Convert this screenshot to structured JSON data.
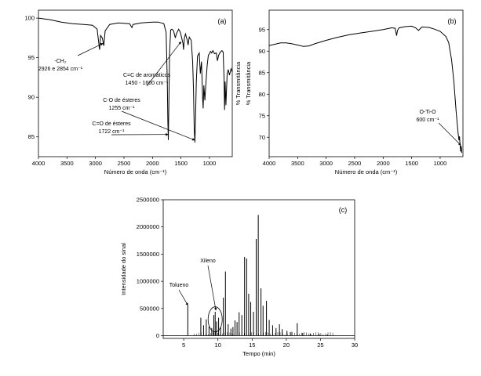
{
  "chart_data": [
    {
      "id": "a",
      "type": "line",
      "panel_label": "(a)",
      "xlabel": "Número de onda (cm⁻¹)",
      "ylabel": "% Transmitância",
      "xlim": [
        4000,
        600
      ],
      "ylim": [
        82.5,
        101
      ],
      "xticks": [
        4000,
        3500,
        3000,
        2500,
        2000,
        1500,
        1000
      ],
      "yticks": [
        85,
        90,
        95,
        100
      ],
      "series": [
        {
          "points": [
            [
              4000,
              100
            ],
            [
              3800,
              99.8
            ],
            [
              3600,
              99.5
            ],
            [
              3400,
              99.3
            ],
            [
              3200,
              99.2
            ],
            [
              3050,
              99.1
            ],
            [
              2970,
              98.6
            ],
            [
              2935,
              96.4
            ],
            [
              2926,
              96.0
            ],
            [
              2910,
              97.8
            ],
            [
              2880,
              97.5
            ],
            [
              2854,
              96.5
            ],
            [
              2830,
              98.4
            ],
            [
              2750,
              99.2
            ],
            [
              2600,
              99.4
            ],
            [
              2400,
              99.3
            ],
            [
              2360,
              98.8
            ],
            [
              2340,
              99.2
            ],
            [
              2200,
              99.4
            ],
            [
              2000,
              99.5
            ],
            [
              1900,
              99.5
            ],
            [
              1800,
              99.3
            ],
            [
              1760,
              98.2
            ],
            [
              1740,
              92
            ],
            [
              1730,
              87
            ],
            [
              1722,
              84.6
            ],
            [
              1712,
              89
            ],
            [
              1700,
              95.5
            ],
            [
              1680,
              98.5
            ],
            [
              1660,
              98.6
            ],
            [
              1630,
              98.4
            ],
            [
              1600,
              97.5
            ],
            [
              1580,
              98.0
            ],
            [
              1540,
              98.6
            ],
            [
              1510,
              98.2
            ],
            [
              1490,
              97.6
            ],
            [
              1465,
              96.8
            ],
            [
              1455,
              96.0
            ],
            [
              1440,
              97.5
            ],
            [
              1420,
              98.0
            ],
            [
              1390,
              97.2
            ],
            [
              1375,
              96.6
            ],
            [
              1355,
              97.6
            ],
            [
              1320,
              97.2
            ],
            [
              1295,
              94.5
            ],
            [
              1280,
              91
            ],
            [
              1268,
              86
            ],
            [
              1255,
              84.3
            ],
            [
              1245,
              87
            ],
            [
              1230,
              92
            ],
            [
              1210,
              95.2
            ],
            [
              1180,
              95.6
            ],
            [
              1160,
              93
            ],
            [
              1140,
              94.5
            ],
            [
              1120,
              90
            ],
            [
              1110,
              88.6
            ],
            [
              1098,
              91.5
            ],
            [
              1080,
              89.6
            ],
            [
              1070,
              91
            ],
            [
              1040,
              94
            ],
            [
              1020,
              95.3
            ],
            [
              1000,
              95.5
            ],
            [
              980,
              95.8
            ],
            [
              960,
              95.6
            ],
            [
              940,
              95.9
            ],
            [
              910,
              95.5
            ],
            [
              880,
              95.6
            ],
            [
              860,
              94.6
            ],
            [
              840,
              95.3
            ],
            [
              810,
              95.7
            ],
            [
              780,
              95.9
            ],
            [
              760,
              95.7
            ],
            [
              745,
              92.5
            ],
            [
              735,
              88.4
            ],
            [
              725,
              92
            ],
            [
              712,
              89
            ],
            [
              700,
              91
            ],
            [
              690,
              93
            ],
            [
              670,
              93.5
            ],
            [
              650,
              92.8
            ],
            [
              620,
              93.6
            ],
            [
              600,
              93.2
            ]
          ]
        }
      ],
      "annotations": [
        {
          "lines": [
            "-CH₂",
            "2926 e 2854 cm⁻¹"
          ],
          "arrow_to": [
            2870,
            96.8
          ]
        },
        {
          "lines": [
            "C=C de aromáticos",
            "1450 - 1600 cm⁻¹"
          ],
          "arrow_to": [
            1500,
            97.0
          ]
        },
        {
          "lines": [
            "C-O de ésteres",
            "1255 cm⁻¹"
          ],
          "arrow_to": [
            1262,
            84.6
          ]
        },
        {
          "lines": [
            "C=O de ésteres",
            "1722 cm⁻¹"
          ],
          "arrow_to": [
            1728,
            85.3
          ]
        }
      ]
    },
    {
      "id": "b",
      "type": "line",
      "panel_label": "(b)",
      "xlabel": "Número de onda (cm⁻¹)",
      "ylabel": "% Transmitância",
      "xlim": [
        4000,
        600
      ],
      "ylim": [
        65.5,
        99.5
      ],
      "xticks": [
        4000,
        3500,
        3000,
        2500,
        2000,
        1500,
        1000
      ],
      "yticks": [
        70,
        75,
        80,
        85,
        90,
        95
      ],
      "series": [
        {
          "points": [
            [
              4000,
              91.3
            ],
            [
              3900,
              91.6
            ],
            [
              3800,
              91.9
            ],
            [
              3700,
              91.9
            ],
            [
              3600,
              91.7
            ],
            [
              3500,
              91.4
            ],
            [
              3400,
              91.1
            ],
            [
              3300,
              91.2
            ],
            [
              3200,
              91.7
            ],
            [
              3000,
              92.5
            ],
            [
              2800,
              93.2
            ],
            [
              2600,
              93.8
            ],
            [
              2400,
              94.2
            ],
            [
              2200,
              94.6
            ],
            [
              2000,
              95.0
            ],
            [
              1850,
              95.4
            ],
            [
              1790,
              95.3
            ],
            [
              1765,
              93.6
            ],
            [
              1748,
              94.8
            ],
            [
              1720,
              95.4
            ],
            [
              1600,
              95.7
            ],
            [
              1500,
              95.8
            ],
            [
              1430,
              95.4
            ],
            [
              1380,
              94.8
            ],
            [
              1320,
              95.6
            ],
            [
              1200,
              95.5
            ],
            [
              1100,
              95.1
            ],
            [
              1000,
              94.6
            ],
            [
              900,
              93.4
            ],
            [
              850,
              92.0
            ],
            [
              800,
              88
            ],
            [
              760,
              83
            ],
            [
              720,
              76
            ],
            [
              690,
              71.5
            ],
            [
              670,
              69.3
            ],
            [
              660,
              70.2
            ],
            [
              650,
              68.0
            ],
            [
              640,
              66.7
            ],
            [
              630,
              68.0
            ],
            [
              620,
              66.4
            ]
          ]
        }
      ],
      "annotations": [
        {
          "lines": [
            "O-Ti-O",
            "600 cm⁻¹"
          ],
          "arrow_to": [
            640,
            68.2
          ]
        }
      ]
    },
    {
      "id": "c",
      "type": "line",
      "panel_label": "(c)",
      "xlabel": "Tempo (min)",
      "ylabel": "Intensidade do sinal",
      "xlim": [
        2,
        30
      ],
      "ylim": [
        -50000,
        2500000
      ],
      "xticks": [
        5,
        10,
        15,
        20,
        25,
        30
      ],
      "yticks": [
        0,
        500000,
        1000000,
        1500000,
        2000000,
        2500000
      ],
      "peaks": [
        [
          5.6,
          560000
        ],
        [
          7.5,
          330000
        ],
        [
          7.9,
          190000
        ],
        [
          8.3,
          300000
        ],
        [
          8.7,
          170000
        ],
        [
          9.1,
          140000
        ],
        [
          9.4,
          380000
        ],
        [
          9.6,
          440000
        ],
        [
          9.8,
          260000
        ],
        [
          10.1,
          330000
        ],
        [
          10.4,
          160000
        ],
        [
          10.8,
          700000
        ],
        [
          11.1,
          1180000
        ],
        [
          11.5,
          210000
        ],
        [
          11.9,
          130000
        ],
        [
          12.2,
          160000
        ],
        [
          12.5,
          280000
        ],
        [
          12.8,
          250000
        ],
        [
          13.1,
          430000
        ],
        [
          13.5,
          380000
        ],
        [
          13.9,
          1450000
        ],
        [
          14.2,
          1420000
        ],
        [
          14.5,
          770000
        ],
        [
          14.8,
          620000
        ],
        [
          15.2,
          440000
        ],
        [
          15.6,
          1780000
        ],
        [
          15.9,
          2220000
        ],
        [
          16.3,
          870000
        ],
        [
          16.6,
          550000
        ],
        [
          17.1,
          640000
        ],
        [
          17.5,
          290000
        ],
        [
          18.0,
          190000
        ],
        [
          18.5,
          140000
        ],
        [
          19.0,
          210000
        ],
        [
          19.4,
          120000
        ],
        [
          20.1,
          90000
        ],
        [
          20.7,
          70000
        ],
        [
          21.6,
          230000
        ],
        [
          22.4,
          50000
        ],
        [
          23.5,
          40000
        ],
        [
          24.8,
          30000
        ],
        [
          26.0,
          20000
        ]
      ],
      "annotations": [
        {
          "text": "Tolueno",
          "arrow_to": [
            5.6,
            560000
          ]
        },
        {
          "text": "Xileno",
          "arrow_to": [
            9.7,
            470000
          ]
        }
      ]
    }
  ]
}
